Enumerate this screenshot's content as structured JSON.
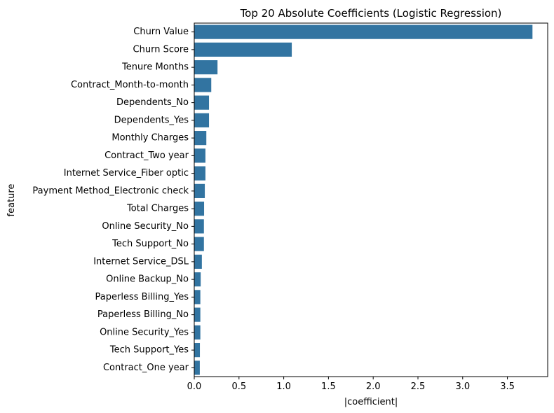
{
  "chart_data": {
    "type": "bar",
    "orientation": "horizontal",
    "title": "Top 20 Absolute Coefficients (Logistic Regression)",
    "xlabel": "|coefficient|",
    "ylabel": "feature",
    "xlim": [
      0,
      3.95
    ],
    "xticks": [
      "0.0",
      "0.5",
      "1.0",
      "1.5",
      "2.0",
      "2.5",
      "3.0",
      "3.5"
    ],
    "xtick_values": [
      0,
      0.5,
      1.0,
      1.5,
      2.0,
      2.5,
      3.0,
      3.5
    ],
    "grid": false,
    "bar_color": "#3274a1",
    "categories": [
      "Churn Value",
      "Churn Score",
      "Tenure Months",
      "Contract_Month-to-month",
      "Dependents_No",
      "Dependents_Yes",
      "Monthly Charges",
      "Contract_Two year",
      "Internet Service_Fiber optic",
      "Payment Method_Electronic check",
      "Total Charges",
      "Online Security_No",
      "Tech Support_No",
      "Internet Service_DSL",
      "Online Backup_No",
      "Paperless Billing_Yes",
      "Paperless Billing_No",
      "Online Security_Yes",
      "Tech Support_Yes",
      "Contract_One year"
    ],
    "values": [
      3.78,
      1.09,
      0.26,
      0.19,
      0.165,
      0.165,
      0.135,
      0.125,
      0.125,
      0.118,
      0.11,
      0.108,
      0.108,
      0.085,
      0.072,
      0.068,
      0.068,
      0.068,
      0.063,
      0.062
    ]
  }
}
